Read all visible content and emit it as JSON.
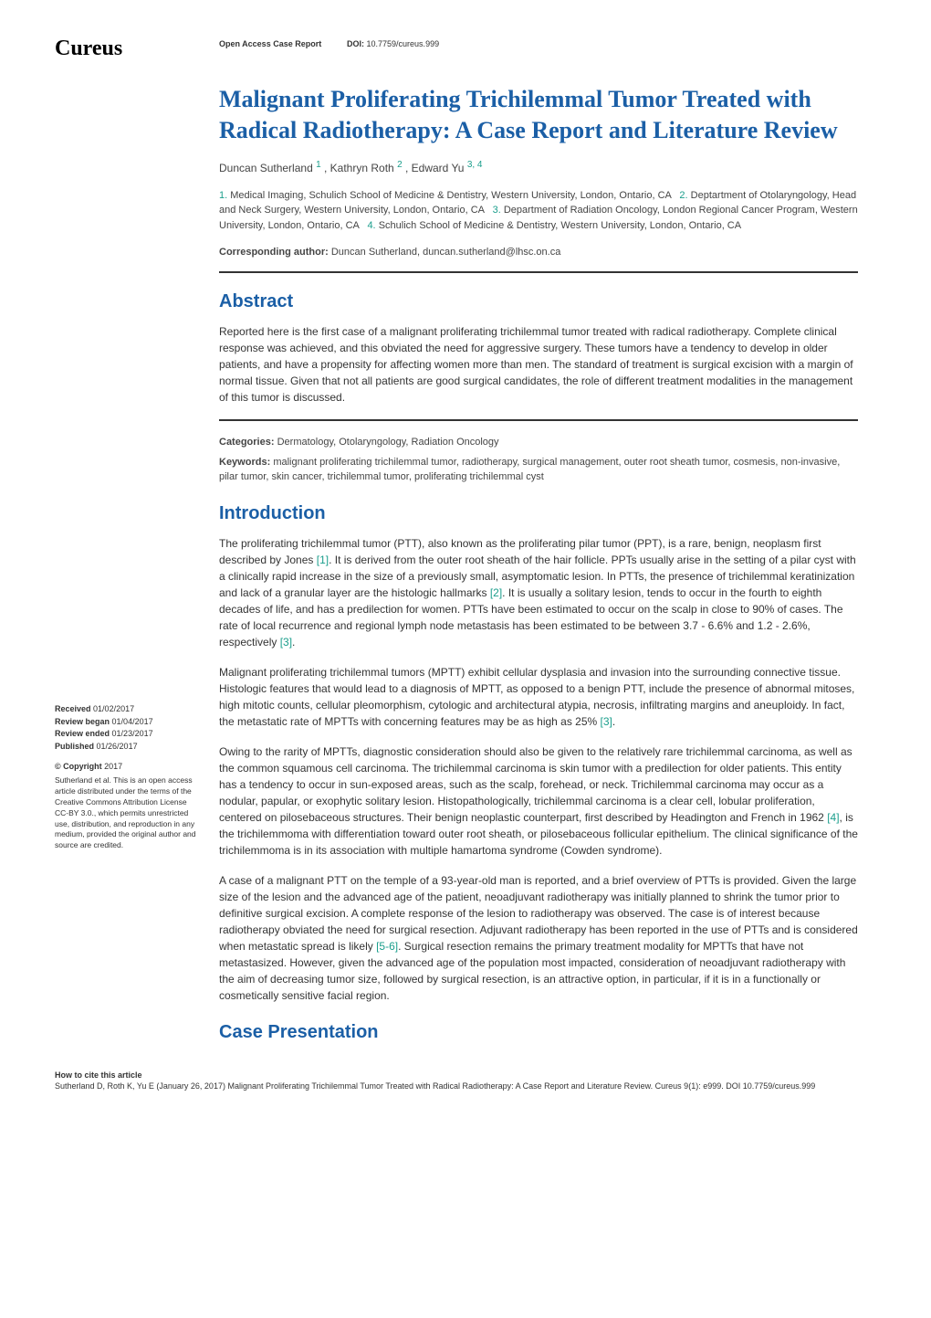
{
  "logo": "Cureus",
  "header": {
    "access_type": "Open Access Case Report",
    "doi_label": "DOI:",
    "doi_value": "10.7759/cureus.999"
  },
  "article": {
    "title": "Malignant Proliferating Trichilemmal Tumor Treated with Radical Radiotherapy: A Case Report and Literature Review",
    "authors": [
      {
        "name": "Duncan Sutherland",
        "sup": "1"
      },
      {
        "name": "Kathryn Roth",
        "sup": "2"
      },
      {
        "name": "Edward Yu",
        "sup": "3, 4"
      }
    ],
    "affiliations": [
      {
        "num": "1.",
        "text": "Medical Imaging, Schulich School of Medicine & Dentistry, Western University, London, Ontario, CA"
      },
      {
        "num": "2.",
        "text": "Deptartment of Otolaryngology, Head and Neck Surgery, Western University, London, Ontario, CA"
      },
      {
        "num": "3.",
        "text": "Department of Radiation Oncology, London Regional Cancer Program, Western University, London, Ontario, CA"
      },
      {
        "num": "4.",
        "text": "Schulich School of Medicine & Dentistry, Western University, London, Ontario, CA"
      }
    ],
    "corresponding_label": "Corresponding author:",
    "corresponding_text": "Duncan Sutherland, duncan.sutherland@lhsc.on.ca"
  },
  "sections": {
    "abstract": {
      "heading": "Abstract",
      "text": "Reported here is the first case of a malignant proliferating trichilemmal tumor treated with radical radiotherapy. Complete clinical response was achieved, and this obviated the need for aggressive surgery. These tumors have a tendency to develop in older patients, and have a propensity for affecting women more than men. The standard of treatment is surgical excision with a margin of normal tissue. Given that not all patients are good surgical candidates, the role of different treatment modalities in the management of this tumor is discussed."
    },
    "categories_label": "Categories:",
    "categories": "Dermatology, Otolaryngology, Radiation Oncology",
    "keywords_label": "Keywords:",
    "keywords": "malignant proliferating trichilemmal tumor, radiotherapy, surgical management, outer root sheath tumor, cosmesis, non-invasive, pilar tumor, skin cancer, trichilemmal tumor, proliferating trichilemmal cyst",
    "introduction": {
      "heading": "Introduction",
      "para1_pre": "The proliferating trichilemmal tumor (PTT), also known as the proliferating pilar tumor (PPT), is a rare, benign, neoplasm first described by Jones ",
      "para1_ref1": "[1]",
      "para1_mid": ". It is derived from the outer root sheath of the hair follicle. PPTs usually arise in the setting of a pilar cyst with a clinically rapid increase in the size of a previously small, asymptomatic lesion.  In PTTs, the presence of trichilemmal keratinization and lack of a granular layer are the histologic hallmarks ",
      "para1_ref2": "[2]",
      "para1_mid2": ". It is usually a solitary lesion, tends to occur in the fourth to eighth decades of life, and has a predilection for women. PTTs have been estimated to occur on the scalp in close to 90% of cases. The rate of local recurrence and regional lymph node metastasis has been estimated to be between 3.7 - 6.6% and 1.2 - 2.6%, respectively ",
      "para1_ref3": "[3]",
      "para1_end": ".",
      "para2_pre": "Malignant proliferating trichilemmal tumors (MPTT) exhibit cellular dysplasia and invasion into the surrounding connective tissue. Histologic features that would lead to a diagnosis of MPTT, as opposed to a benign PTT, include the presence of abnormal mitoses, high mitotic counts, cellular pleomorphism, cytologic and architectural atypia, necrosis, infiltrating margins and aneuploidy. In fact, the metastatic rate of MPTTs with concerning features may be as high as 25% ",
      "para2_ref": "[3]",
      "para2_end": ".",
      "para3_pre": "Owing to the rarity of MPTTs, diagnostic consideration should also be given to the relatively rare trichilemmal carcinoma, as well as the common squamous cell carcinoma. The trichilemmal carcinoma is skin tumor with a predilection for older patients. This entity has a tendency to occur in sun-exposed areas, such as the scalp, forehead, or neck. Trichilemmal carcinoma may occur as a nodular, papular, or exophytic solitary lesion. Histopathologically, trichilemmal carcinoma is a clear cell, lobular proliferation, centered on pilosebaceous structures. Their benign neoplastic counterpart, first described by Headington and French in 1962 ",
      "para3_ref": "[4]",
      "para3_end": ", is the trichilemmoma with differentiation toward outer root sheath, or pilosebaceous follicular epithelium. The clinical significance of the trichilemmoma is in its association with multiple hamartoma syndrome (Cowden syndrome).",
      "para4_pre": "A case of a malignant PTT on the temple of a 93-year-old man is reported, and a brief overview of PTTs is provided. Given the large size of the lesion and the advanced age of the patient, neoadjuvant radiotherapy was initially planned to shrink the tumor prior to definitive surgical excision. A complete response of the lesion to radiotherapy was observed. The case is of interest because radiotherapy obviated the need for surgical resection. Adjuvant radiotherapy has been reported in the use of PTTs and is considered when metastatic spread is likely ",
      "para4_ref": "[5-6]",
      "para4_end": ". Surgical resection remains the primary treatment modality for MPTTs that have not metastasized. However, given the advanced age of the population most impacted, consideration of neoadjuvant radiotherapy with the aim of decreasing tumor size, followed by surgical resection, is an attractive option, in particular, if it is in a functionally or cosmetically sensitive facial region."
    },
    "case_presentation": {
      "heading": "Case Presentation"
    }
  },
  "sidebar": {
    "received_label": "Received",
    "received_date": "01/02/2017",
    "review_began_label": "Review began",
    "review_began_date": "01/04/2017",
    "review_ended_label": "Review ended",
    "review_ended_date": "01/23/2017",
    "published_label": "Published",
    "published_date": "01/26/2017",
    "copyright_heading": "© Copyright",
    "copyright_year": "2017",
    "copyright_text": "Sutherland et al. This is an open access article distributed under the terms of the Creative Commons Attribution License CC-BY 3.0., which permits unrestricted use, distribution, and reproduction in any medium, provided the original author and source are credited."
  },
  "footer": {
    "heading": "How to cite this article",
    "text": "Sutherland D, Roth K, Yu E (January 26, 2017) Malignant Proliferating Trichilemmal Tumor Treated with Radical Radiotherapy: A Case Report and Literature Review. Cureus 9(1): e999. DOI 10.7759/cureus.999"
  },
  "colors": {
    "heading_blue": "#1b5fa6",
    "accent_teal": "#1b9e8c",
    "text_dark": "#333333",
    "text_medium": "#444444",
    "background": "#ffffff",
    "divider": "#333333"
  },
  "typography": {
    "title_fontsize": 26,
    "heading_fontsize": 20,
    "body_fontsize": 12,
    "small_fontsize": 11,
    "sidebar_fontsize": 9,
    "logo_fontsize": 24
  }
}
